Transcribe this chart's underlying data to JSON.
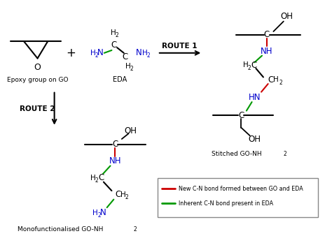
{
  "bg_color": "#ffffff",
  "black": "#000000",
  "blue": "#0000cc",
  "red": "#cc0000",
  "green": "#009900",
  "legend_red_label": "New C-N bond formed between GO and EDA",
  "legend_green_label": "Inherent C-N bond present in EDA",
  "route1_label": "ROUTE 1",
  "route2_label": "ROUTE 2",
  "epoxy_label": "Epoxy group on GO",
  "eda_label": "EDA",
  "stitched_label": "Stitched GO-NH",
  "stitched_sub": "2",
  "mono_label": "Monofunctionalised GO-NH",
  "mono_sub": "2"
}
